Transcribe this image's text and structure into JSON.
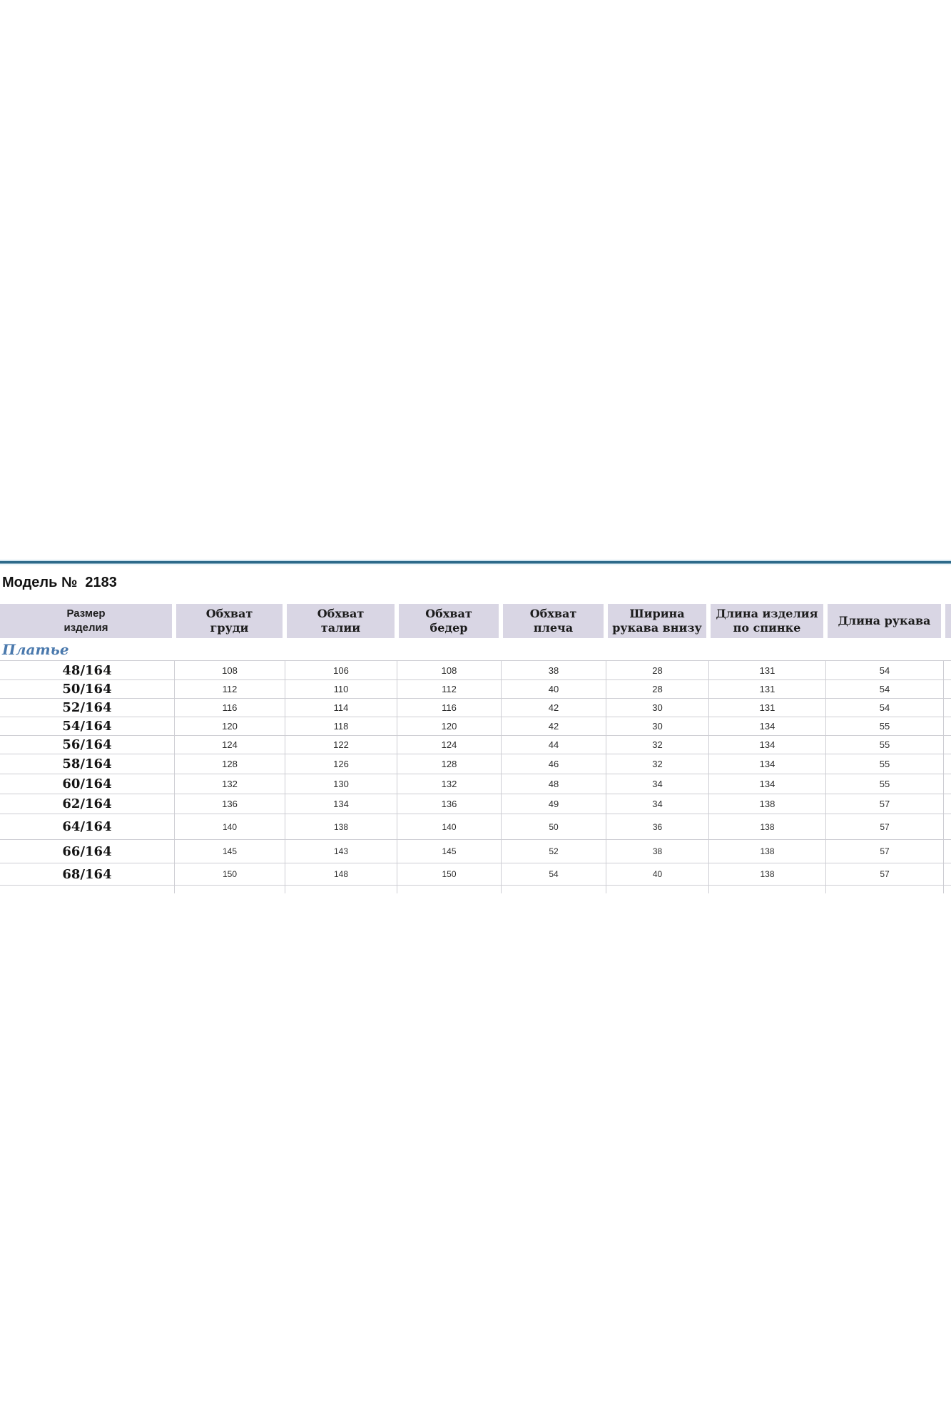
{
  "page": {
    "title": "Модель №  2183"
  },
  "table": {
    "section_label": "Платье",
    "headers": [
      "Размер\nизделия",
      "Обхват\nгруди",
      "Обхват\nталии",
      "Обхват\nбедер",
      "Обхват\nплеча",
      "Ширина\nрукава внизу",
      "Длина изделия\nпо спинке",
      "Длина рукава"
    ],
    "rows": [
      {
        "size": "48/164",
        "values": [
          "108",
          "106",
          "108",
          "38",
          "28",
          "131",
          "54"
        ]
      },
      {
        "size": "50/164",
        "values": [
          "112",
          "110",
          "112",
          "40",
          "28",
          "131",
          "54"
        ]
      },
      {
        "size": "52/164",
        "values": [
          "116",
          "114",
          "116",
          "42",
          "30",
          "131",
          "54"
        ]
      },
      {
        "size": "54/164",
        "values": [
          "120",
          "118",
          "120",
          "42",
          "30",
          "134",
          "55"
        ]
      },
      {
        "size": "56/164",
        "values": [
          "124",
          "122",
          "124",
          "44",
          "32",
          "134",
          "55"
        ]
      },
      {
        "size": "58/164",
        "values": [
          "128",
          "126",
          "128",
          "46",
          "32",
          "134",
          "55"
        ]
      },
      {
        "size": "60/164",
        "values": [
          "132",
          "130",
          "132",
          "48",
          "34",
          "134",
          "55"
        ]
      },
      {
        "size": "62/164",
        "values": [
          "136",
          "134",
          "136",
          "49",
          "34",
          "138",
          "57"
        ]
      },
      {
        "size": "64/164",
        "values": [
          "140",
          "138",
          "140",
          "50",
          "36",
          "138",
          "57"
        ]
      },
      {
        "size": "66/164",
        "values": [
          "145",
          "143",
          "145",
          "52",
          "38",
          "138",
          "57"
        ]
      },
      {
        "size": "68/164",
        "values": [
          "150",
          "148",
          "150",
          "54",
          "40",
          "138",
          "57"
        ]
      }
    ]
  },
  "colors": {
    "header_bg": "#d9d6e4",
    "section_color": "#4a79ad",
    "rule_dark": "#2e6a8a",
    "rule_light": "#cfe3ee",
    "rule_shadow": "#8fb3c6",
    "grid_border": "#cdcdd3"
  }
}
